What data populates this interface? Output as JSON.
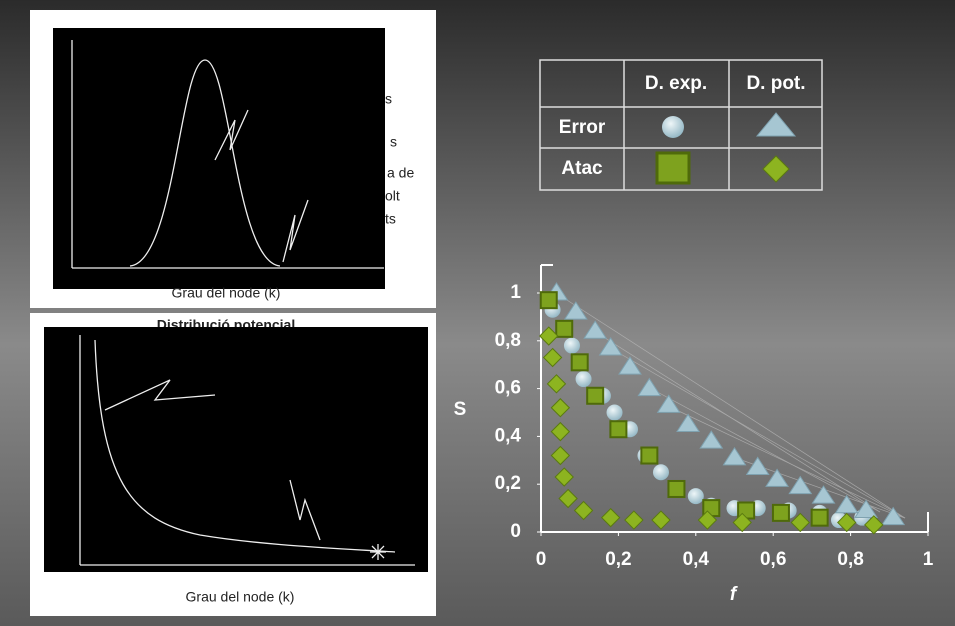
{
  "chart_data": {
    "type": "scatter",
    "x_label": "f",
    "y_label": "S",
    "xlim": [
      0,
      1
    ],
    "ylim": [
      0,
      1
    ],
    "xticks": [
      0,
      {
        "value": 0.2,
        "label": "0,2"
      },
      {
        "value": 0.4,
        "label": "0,4"
      },
      {
        "value": 0.6,
        "label": "0,6"
      },
      {
        "value": 0.8,
        "label": "0,8"
      },
      1
    ],
    "yticks": [
      0,
      {
        "value": 0.2,
        "label": "0,2"
      },
      {
        "value": 0.4,
        "label": "0,4"
      },
      {
        "value": 0.6,
        "label": "0,6"
      },
      {
        "value": 0.8,
        "label": "0,8"
      },
      1
    ],
    "series": [
      {
        "color": "#b4d2dc",
        "marker": "circle",
        "x": [
          0.03,
          0.08,
          0.11,
          0.16,
          0.19,
          0.23,
          0.27,
          0.31,
          0.35,
          0.4,
          0.44,
          0.5,
          0.56,
          0.64,
          0.72,
          0.77,
          0.83
        ],
        "values": [
          0.93,
          0.78,
          0.64,
          0.57,
          0.5,
          0.43,
          0.32,
          0.25,
          0.18,
          0.15,
          0.11,
          0.1,
          0.1,
          0.09,
          0.08,
          0.05,
          0.06
        ]
      },
      {
        "color": "#a6c6d2",
        "marker": "triangle",
        "x": [
          0.04,
          0.09,
          0.14,
          0.18,
          0.23,
          0.28,
          0.33,
          0.38,
          0.44,
          0.5,
          0.56,
          0.61,
          0.67,
          0.73,
          0.79,
          0.84,
          0.91
        ],
        "values": [
          1.0,
          0.92,
          0.84,
          0.77,
          0.69,
          0.6,
          0.53,
          0.45,
          0.38,
          0.31,
          0.27,
          0.22,
          0.19,
          0.15,
          0.11,
          0.09,
          0.06
        ]
      },
      {
        "color": "#7ea21e",
        "marker": "square",
        "x": [
          0.02,
          0.06,
          0.1,
          0.14,
          0.2,
          0.28,
          0.35,
          0.44,
          0.53,
          0.62,
          0.72
        ],
        "values": [
          0.97,
          0.85,
          0.71,
          0.57,
          0.43,
          0.32,
          0.18,
          0.1,
          0.09,
          0.08,
          0.06
        ]
      },
      {
        "color": "#8db420",
        "marker": "diamond",
        "x": [
          0.02,
          0.03,
          0.04,
          0.05,
          0.05,
          0.05,
          0.06,
          0.07,
          0.11,
          0.18,
          0.24,
          0.31,
          0.43,
          0.52,
          0.67,
          0.79,
          0.86
        ],
        "values": [
          0.82,
          0.73,
          0.62,
          0.52,
          0.42,
          0.32,
          0.23,
          0.14,
          0.09,
          0.06,
          0.05,
          0.05,
          0.05,
          0.04,
          0.04,
          0.04,
          0.03
        ]
      }
    ]
  },
  "legend_table": {
    "header": [
      "D. exp.",
      "D. pot."
    ],
    "rows": [
      "Error",
      "Atac"
    ]
  },
  "panels": [
    {
      "caption": "Grau del node (k)",
      "fragments": [
        "s",
        "s",
        "a de",
        "olt",
        "ts"
      ]
    },
    {
      "heading": "Distribució potencial",
      "caption": "Grau del node (k)"
    }
  ]
}
